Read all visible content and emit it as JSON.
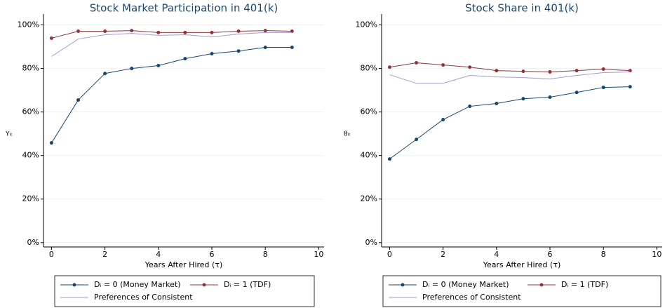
{
  "chart_data": [
    {
      "type": "line",
      "title": "Stock Market Participation in 401(k)",
      "x_label": "Years After Hired (τ)",
      "y_label": "Yᵢₜ",
      "x": [
        0,
        1,
        2,
        3,
        4,
        5,
        6,
        7,
        8,
        9
      ],
      "xlim": [
        -0.3,
        10.2
      ],
      "xticks": [
        0,
        2,
        4,
        6,
        8,
        10
      ],
      "ylim": [
        -2,
        105
      ],
      "yticks": [
        {
          "value": 0,
          "label": "0%"
        },
        {
          "value": 20,
          "label": "20%"
        },
        {
          "value": 40,
          "label": "40%"
        },
        {
          "value": 60,
          "label": "60%"
        },
        {
          "value": 80,
          "label": "80%"
        },
        {
          "value": 100,
          "label": "100%"
        }
      ],
      "grid": true,
      "legend": "bottom",
      "series": [
        {
          "name": "Dᵢ = 0 (Money Market)",
          "color": "#1a476f",
          "marker": true,
          "values": [
            45.8,
            65.5,
            77.7,
            80,
            81.3,
            84.5,
            86.8,
            88,
            89.7,
            89.7
          ]
        },
        {
          "name": "Dᵢ = 1 (TDF)",
          "color": "#90353b",
          "marker": true,
          "values": [
            93.9,
            97.1,
            97.1,
            97.4,
            96.5,
            96.5,
            96.5,
            97.1,
            97.4,
            97.1
          ]
        },
        {
          "name": "Preferences of Consistent",
          "color": "#a29ad6",
          "marker": false,
          "values": [
            85.5,
            93.5,
            95.5,
            96.1,
            95.2,
            95.5,
            94.5,
            95.8,
            96.5,
            96.5
          ]
        }
      ]
    },
    {
      "type": "line",
      "title": "Stock Share in 401(k)",
      "x_label": "Years After Hired (τ)",
      "y_label": "θᵢₜ",
      "x": [
        0,
        1,
        2,
        3,
        4,
        5,
        6,
        7,
        8,
        9
      ],
      "xlim": [
        -0.3,
        10.2
      ],
      "xticks": [
        0,
        2,
        4,
        6,
        8,
        10
      ],
      "ylim": [
        -2,
        105
      ],
      "yticks": [
        {
          "value": 0,
          "label": "0%"
        },
        {
          "value": 20,
          "label": "20%"
        },
        {
          "value": 40,
          "label": "40%"
        },
        {
          "value": 60,
          "label": "60%"
        },
        {
          "value": 80,
          "label": "80%"
        },
        {
          "value": 100,
          "label": "100%"
        }
      ],
      "grid": true,
      "legend": "bottom",
      "series": [
        {
          "name": "Dᵢ = 0 (Money Market)",
          "color": "#1a476f",
          "marker": true,
          "values": [
            38.4,
            47.4,
            56.5,
            62.6,
            63.9,
            66.1,
            66.8,
            69,
            71.3,
            71.6
          ]
        },
        {
          "name": "Dᵢ = 1 (TDF)",
          "color": "#90353b",
          "marker": true,
          "values": [
            80.6,
            82.6,
            81.6,
            80.6,
            79,
            78.7,
            78.4,
            79,
            79.7,
            79
          ]
        },
        {
          "name": "Preferences of Consistent",
          "color": "#a29ad6",
          "marker": false,
          "values": [
            77.1,
            73.2,
            73.2,
            76.8,
            76.1,
            75.8,
            75.2,
            76.8,
            78.1,
            78.4
          ]
        }
      ]
    }
  ]
}
